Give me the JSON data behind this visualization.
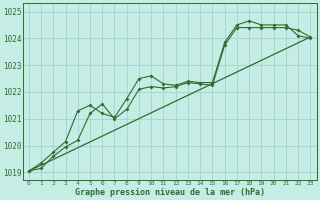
{
  "title": "Graphe pression niveau de la mer (hPa)",
  "background_color": "#c6ece6",
  "grid_color": "#a0d4cc",
  "line_color": "#2d6e2d",
  "xlim": [
    -0.5,
    23.5
  ],
  "ylim": [
    1018.7,
    1025.3
  ],
  "yticks": [
    1019,
    1020,
    1021,
    1022,
    1023,
    1024,
    1025
  ],
  "xticks": [
    0,
    1,
    2,
    3,
    4,
    5,
    6,
    7,
    8,
    9,
    10,
    11,
    12,
    13,
    14,
    15,
    16,
    17,
    18,
    19,
    20,
    21,
    22,
    23
  ],
  "series1_x": [
    0,
    1,
    2,
    3,
    4,
    5,
    6,
    7,
    8,
    9,
    10,
    11,
    12,
    13,
    14,
    15,
    16,
    17,
    18,
    19,
    20,
    21,
    22,
    23
  ],
  "series1_y": [
    1019.05,
    1019.35,
    1019.75,
    1020.15,
    1021.3,
    1021.5,
    1021.2,
    1021.05,
    1021.75,
    1022.5,
    1022.6,
    1022.3,
    1022.25,
    1022.4,
    1022.35,
    1022.35,
    1023.85,
    1024.5,
    1024.65,
    1024.5,
    1024.5,
    1024.5,
    1024.1,
    1024.0
  ],
  "series2_x": [
    0,
    1,
    2,
    3,
    4,
    5,
    6,
    7,
    8,
    9,
    10,
    11,
    12,
    13,
    14,
    15,
    16,
    17,
    18,
    19,
    20,
    21,
    22,
    23
  ],
  "series2_y": [
    1019.05,
    1019.15,
    1019.6,
    1019.95,
    1020.2,
    1021.2,
    1021.55,
    1021.0,
    1021.35,
    1022.1,
    1022.2,
    1022.15,
    1022.2,
    1022.35,
    1022.3,
    1022.25,
    1023.75,
    1024.4,
    1024.4,
    1024.4,
    1024.4,
    1024.4,
    1024.3,
    1024.05
  ],
  "trend_x": [
    0,
    23
  ],
  "trend_y": [
    1019.05,
    1024.05
  ]
}
